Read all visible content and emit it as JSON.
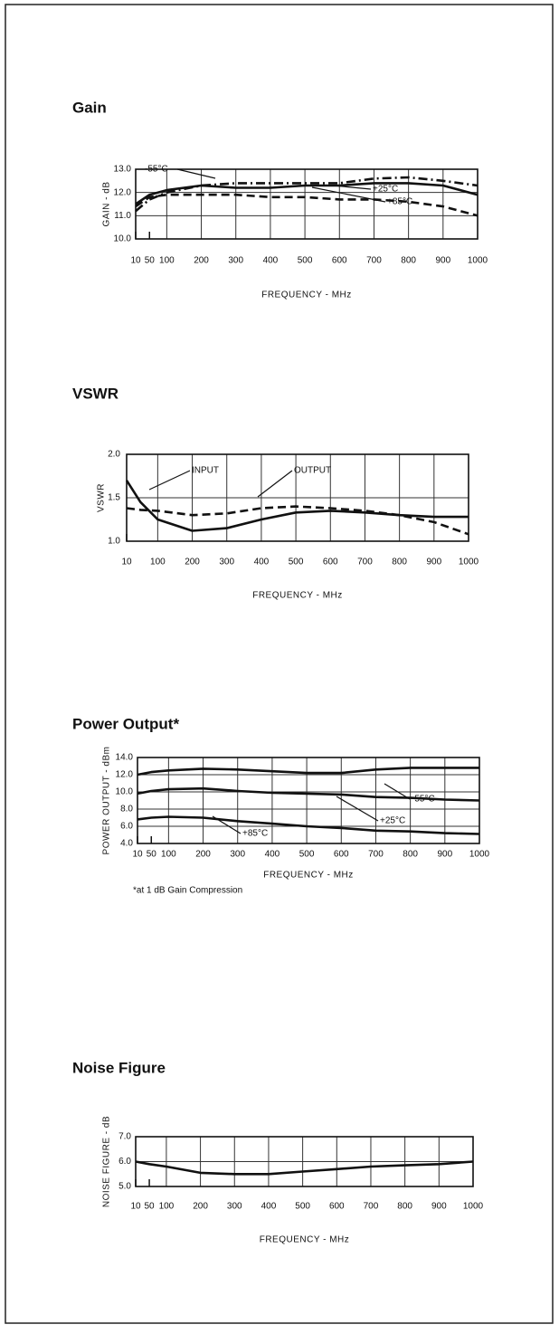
{
  "chart_data": [
    {
      "type": "line",
      "title": "Gain",
      "xlabel": "FREQUENCY - MHz",
      "ylabel": "GAIN - dB",
      "x": [
        10,
        50,
        100,
        200,
        300,
        400,
        500,
        600,
        700,
        800,
        900,
        1000
      ],
      "series": [
        {
          "name": "-55°C",
          "color": "#111111",
          "style": "dashdot",
          "values": [
            11.2,
            11.7,
            12.0,
            12.3,
            12.4,
            12.4,
            12.4,
            12.4,
            12.6,
            12.65,
            12.5,
            12.3
          ]
        },
        {
          "name": "+25°C",
          "color": "#111111",
          "style": "solid",
          "values": [
            11.5,
            11.9,
            12.1,
            12.3,
            12.2,
            12.2,
            12.3,
            12.3,
            12.4,
            12.4,
            12.3,
            11.9
          ]
        },
        {
          "name": "+85°C",
          "color": "#111111",
          "style": "dashed",
          "values": [
            11.4,
            11.8,
            11.9,
            11.9,
            11.9,
            11.8,
            11.8,
            11.7,
            11.7,
            11.6,
            11.4,
            11.0
          ]
        }
      ],
      "xlim": [
        10,
        1000
      ],
      "ylim": [
        10,
        13
      ],
      "xticks": [
        10,
        50,
        100,
        200,
        300,
        400,
        500,
        600,
        700,
        800,
        900,
        1000
      ],
      "yticks": [
        {
          "value": 10,
          "label": "10.0"
        },
        {
          "value": 11,
          "label": "11.0"
        },
        {
          "value": 12,
          "label": "12.0"
        },
        {
          "value": 13,
          "label": "13.0"
        }
      ],
      "grid": true
    },
    {
      "type": "line",
      "title": "VSWR",
      "xlabel": "FREQUENCY - MHz",
      "ylabel": "VSWR",
      "x": [
        10,
        50,
        100,
        200,
        300,
        400,
        500,
        600,
        700,
        800,
        900,
        1000
      ],
      "series": [
        {
          "name": "INPUT",
          "color": "#111111",
          "style": "solid",
          "values": [
            1.7,
            1.45,
            1.25,
            1.12,
            1.15,
            1.25,
            1.33,
            1.35,
            1.33,
            1.3,
            1.28,
            1.28
          ]
        },
        {
          "name": "OUTPUT",
          "color": "#111111",
          "style": "dashed",
          "values": [
            1.38,
            1.36,
            1.35,
            1.3,
            1.32,
            1.38,
            1.4,
            1.38,
            1.35,
            1.3,
            1.22,
            1.08
          ]
        }
      ],
      "xlim": [
        10,
        1000
      ],
      "ylim": [
        1,
        2
      ],
      "xticks": [
        10,
        100,
        200,
        300,
        400,
        500,
        600,
        700,
        800,
        900,
        1000
      ],
      "yticks": [
        {
          "value": 1,
          "label": "1.0"
        },
        1.5,
        {
          "value": 2,
          "label": "2.0"
        }
      ],
      "grid": true
    },
    {
      "type": "line",
      "title": "Power Output*",
      "xlabel": "FREQUENCY - MHz",
      "ylabel": "POWER OUTPUT - dBm",
      "footnote": "*at 1 dB Gain Compression",
      "x": [
        10,
        50,
        100,
        200,
        300,
        400,
        500,
        600,
        700,
        800,
        900,
        1000
      ],
      "series": [
        {
          "name": "-55°C",
          "color": "#111111",
          "style": "solid",
          "values": [
            12.0,
            12.3,
            12.5,
            12.7,
            12.6,
            12.4,
            12.2,
            12.2,
            12.6,
            12.8,
            12.8,
            12.8
          ]
        },
        {
          "name": "+25°C",
          "color": "#111111",
          "style": "solid",
          "values": [
            9.8,
            10.1,
            10.3,
            10.4,
            10.1,
            9.9,
            9.8,
            9.7,
            9.4,
            9.3,
            9.1,
            9.0
          ]
        },
        {
          "name": "+85°C",
          "color": "#111111",
          "style": "solid",
          "values": [
            6.8,
            7.0,
            7.1,
            7.0,
            6.6,
            6.3,
            6.0,
            5.8,
            5.5,
            5.4,
            5.2,
            5.1
          ]
        }
      ],
      "xlim": [
        10,
        1000
      ],
      "ylim": [
        4,
        14
      ],
      "xticks": [
        10,
        50,
        100,
        200,
        300,
        400,
        500,
        600,
        700,
        800,
        900,
        1000
      ],
      "yticks": [
        {
          "value": 4,
          "label": "4.0"
        },
        {
          "value": 6,
          "label": "6.0"
        },
        {
          "value": 8,
          "label": "8.0"
        },
        {
          "value": 10,
          "label": "10.0"
        },
        {
          "value": 12,
          "label": "12.0"
        },
        {
          "value": 14,
          "label": "14.0"
        }
      ],
      "grid": true
    },
    {
      "type": "line",
      "title": "Noise Figure",
      "xlabel": "FREQUENCY - MHz",
      "ylabel": "NOISE FIGURE - dB",
      "x": [
        10,
        50,
        100,
        200,
        300,
        400,
        500,
        600,
        700,
        800,
        900,
        1000
      ],
      "series": [
        {
          "name": "Noise Figure",
          "color": "#111111",
          "style": "solid",
          "values": [
            6.0,
            5.9,
            5.8,
            5.55,
            5.5,
            5.5,
            5.6,
            5.7,
            5.8,
            5.85,
            5.9,
            6.0
          ]
        }
      ],
      "xlim": [
        10,
        1000
      ],
      "ylim": [
        5,
        7
      ],
      "xticks": [
        10,
        50,
        100,
        200,
        300,
        400,
        500,
        600,
        700,
        800,
        900,
        1000
      ],
      "yticks": [
        {
          "value": 5,
          "label": "5.0"
        },
        {
          "value": 6,
          "label": "6.0"
        },
        {
          "value": 7,
          "label": "7.0"
        }
      ],
      "grid": true
    }
  ]
}
